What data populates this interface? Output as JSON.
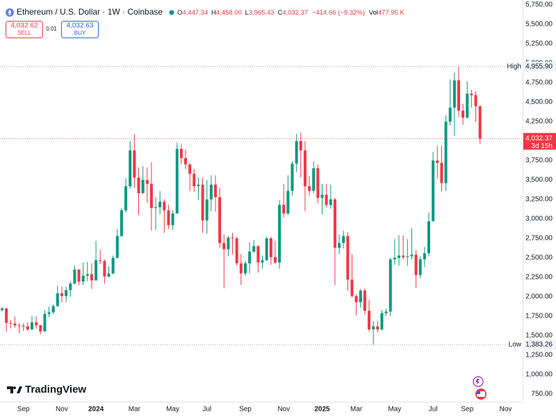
{
  "header": {
    "title": "Ethereum / U.S. Dollar · 1W · Coinbase",
    "ohlc": [
      {
        "key": "O",
        "value": "4,447.34"
      },
      {
        "key": "H",
        "value": "4,458.00"
      },
      {
        "key": "L",
        "value": "3,965.43"
      },
      {
        "key": "C",
        "value": "4,032.37"
      }
    ],
    "change": "−414.66 (−9.32%)",
    "volume": {
      "key": "Vol",
      "value": "477.95 K"
    }
  },
  "trade_panel": {
    "sell": {
      "price": "4,032.62",
      "label": "SELL"
    },
    "spread": "0.01",
    "buy": {
      "price": "4,032.63",
      "label": "BUY"
    }
  },
  "brand": "TradingView",
  "chart_data": {
    "type": "candlestick",
    "up_color": "#089981",
    "down_color": "#f23645",
    "grid": false,
    "categories": [
      null,
      null,
      null,
      null,
      null,
      "Sep",
      null,
      null,
      null,
      null,
      null,
      null,
      null,
      null,
      "Nov",
      null,
      null,
      null,
      null,
      null,
      null,
      null,
      "2024",
      null,
      null,
      null,
      null,
      null,
      null,
      null,
      null,
      "Mar",
      null,
      null,
      null,
      null,
      null,
      null,
      null,
      null,
      "May",
      null,
      null,
      null,
      null,
      null,
      null,
      null,
      "Jul",
      null,
      null,
      null,
      null,
      null,
      null,
      null,
      null,
      "Sep",
      null,
      null,
      null,
      null,
      null,
      null,
      null,
      null,
      "Nov",
      null,
      null,
      null,
      null,
      null,
      null,
      null,
      null,
      "2025",
      null,
      null,
      null,
      null,
      null,
      null,
      null,
      "Mar",
      null,
      null,
      null,
      null,
      null,
      null,
      null,
      null,
      "May",
      null,
      null,
      null,
      null,
      null,
      null,
      null,
      null,
      "Jul",
      null,
      null,
      null,
      null,
      null,
      null,
      null,
      "Sep",
      null,
      null,
      null,
      null,
      null,
      null,
      null,
      null,
      "Nov"
    ],
    "open": [
      1827,
      1850,
      1665,
      1656,
      1633,
      1630,
      1620,
      1580,
      1672,
      1635,
      1555,
      1780,
      1800,
      1880,
      2045,
      2010,
      2085,
      2170,
      2350,
      2195,
      2270,
      2290,
      2210,
      2470,
      2460,
      2260,
      2300,
      2500,
      2780,
      3110,
      3420,
      3880,
      3530,
      3330,
      3500,
      3450,
      3140,
      3150,
      3220,
      3110,
      2920,
      3070,
      3900,
      3780,
      3700,
      3580,
      3420,
      3440,
      2980,
      3250,
      3440,
      3280,
      2690,
      2610,
      2760,
      2750,
      2430,
      2300,
      2430,
      2580,
      2650,
      2440,
      2470,
      2750,
      2510,
      2440,
      3180,
      3070,
      3360,
      3710,
      4000,
      3880,
      3420,
      3360,
      3650,
      3270,
      3310,
      3180,
      3250,
      2630,
      2690,
      2780,
      2220,
      2010,
      1930,
      2080,
      1820,
      1580,
      1620,
      1580,
      1790,
      1810,
      2480,
      2500,
      2530,
      2510,
      2520,
      2540,
      2280,
      2480,
      2560,
      2970,
      3750,
      3720,
      3460,
      4250,
      4430,
      4780,
      4390,
      4300,
      4610,
      4590,
      4447.34,
      null,
      null,
      null,
      null,
      null,
      null
    ],
    "high": [
      1870,
      1860,
      1700,
      1745,
      1660,
      1660,
      1670,
      1750,
      1750,
      1640,
      1830,
      1870,
      1900,
      2140,
      2130,
      2130,
      2200,
      2400,
      2350,
      2440,
      2450,
      2430,
      2720,
      2600,
      2480,
      2390,
      2530,
      2870,
      3140,
      3520,
      4000,
      4090,
      3660,
      3680,
      3660,
      3730,
      3280,
      3360,
      3250,
      3180,
      3110,
      3980,
      3960,
      3890,
      3720,
      3640,
      3530,
      3530,
      3500,
      3560,
      3560,
      3400,
      2800,
      2780,
      2820,
      2770,
      2550,
      2460,
      2700,
      2730,
      2660,
      2530,
      2770,
      2770,
      2720,
      3240,
      3450,
      3560,
      3740,
      4090,
      4110,
      4000,
      3550,
      3740,
      3700,
      3450,
      3450,
      3440,
      3270,
      2800,
      2850,
      2830,
      2550,
      2030,
      2100,
      2110,
      1960,
      1690,
      1690,
      1830,
      1850,
      2500,
      2740,
      2790,
      2790,
      2740,
      2880,
      2600,
      2520,
      2640,
      3080,
      3860,
      3940,
      3940,
      4330,
      4790,
      4880,
      4955.9,
      4480,
      4770,
      4660,
      4640,
      4458,
      null,
      null,
      null,
      null,
      null,
      null
    ],
    "low": [
      1810,
      1550,
      1600,
      1605,
      1530,
      1560,
      1560,
      1575,
      1590,
      1520,
      1550,
      1740,
      1780,
      1870,
      1930,
      1930,
      2000,
      2160,
      2150,
      2150,
      2200,
      2100,
      2210,
      2420,
      2170,
      2250,
      2290,
      2490,
      2770,
      3080,
      3390,
      3400,
      3050,
      3320,
      3210,
      2850,
      2860,
      3060,
      2820,
      2870,
      2860,
      3070,
      3700,
      3640,
      3360,
      3350,
      3240,
      2820,
      2810,
      3100,
      3090,
      2630,
      2110,
      2520,
      2540,
      2400,
      2150,
      2270,
      2300,
      2560,
      2310,
      2360,
      2460,
      2410,
      2420,
      2360,
      3020,
      3050,
      3300,
      3600,
      3530,
      3100,
      3300,
      3330,
      3200,
      3060,
      3150,
      3130,
      2150,
      2550,
      2620,
      2080,
      1990,
      1760,
      1860,
      1770,
      1550,
      1383.26,
      1540,
      1570,
      1750,
      1750,
      2410,
      2400,
      2480,
      2400,
      2480,
      2120,
      2240,
      2380,
      2520,
      2970,
      3520,
      3350,
      3360,
      4200,
      4070,
      4310,
      4210,
      4290,
      4430,
      4250,
      3965.43,
      null,
      null,
      null,
      null,
      null,
      null
    ],
    "close": [
      1850,
      1665,
      1656,
      1633,
      1630,
      1620,
      1580,
      1672,
      1635,
      1555,
      1780,
      1800,
      1880,
      2045,
      2010,
      2085,
      2170,
      2350,
      2195,
      2270,
      2290,
      2210,
      2470,
      2460,
      2260,
      2300,
      2500,
      2780,
      3110,
      3420,
      3880,
      3530,
      3330,
      3500,
      3450,
      3140,
      3150,
      3220,
      3110,
      2920,
      3070,
      3900,
      3780,
      3700,
      3580,
      3420,
      3440,
      2980,
      3250,
      3440,
      3280,
      2690,
      2610,
      2760,
      2750,
      2430,
      2300,
      2430,
      2580,
      2650,
      2440,
      2470,
      2750,
      2510,
      2440,
      3180,
      3070,
      3360,
      3710,
      4000,
      3880,
      3420,
      3360,
      3650,
      3270,
      3310,
      3180,
      3250,
      2630,
      2690,
      2780,
      2220,
      2010,
      1930,
      2080,
      1820,
      1580,
      1620,
      1580,
      1790,
      1810,
      2480,
      2500,
      2530,
      2510,
      2520,
      2540,
      2280,
      2480,
      2560,
      2970,
      3750,
      3720,
      3460,
      4250,
      4430,
      4780,
      4390,
      4300,
      4610,
      4590,
      4447.03,
      4032.37,
      null,
      null,
      null,
      null,
      null,
      null
    ],
    "ylim": [
      652,
      5812
    ],
    "yticks": [
      {
        "value": 750,
        "label": "750.00"
      },
      {
        "value": 1000,
        "label": "1,000.00"
      },
      {
        "value": 1250,
        "label": "1,250.00"
      },
      {
        "value": 1500,
        "label": "1,500.00"
      },
      {
        "value": 1750,
        "label": "1,750.00"
      },
      {
        "value": 2000,
        "label": "2,000.00"
      },
      {
        "value": 2250,
        "label": "2,250.00"
      },
      {
        "value": 2500,
        "label": "2,500.00"
      },
      {
        "value": 2750,
        "label": "2,750.00"
      },
      {
        "value": 3000,
        "label": "3,000.00"
      },
      {
        "value": 3250,
        "label": "3,250.00"
      },
      {
        "value": 3500,
        "label": "3,500.00"
      },
      {
        "value": 3750,
        "label": "3,750.00"
      },
      {
        "value": 4000,
        "label": "4,000.00"
      },
      {
        "value": 4250,
        "label": "4,250.00"
      },
      {
        "value": 4500,
        "label": "4,500.00"
      },
      {
        "value": 4750,
        "label": "4,750.00"
      },
      {
        "value": 5000,
        "label": "5,000.00"
      },
      {
        "value": 5250,
        "label": "5,250.00"
      },
      {
        "value": 5500,
        "label": "5,500.00"
      },
      {
        "value": 5750,
        "label": "5,750.00"
      }
    ],
    "price_lines": [
      {
        "text": "High",
        "value": 4955.9,
        "label": "4,955.90",
        "color": "#787b86"
      },
      {
        "text": "3d 15h",
        "value": 4032.37,
        "label": "4,032.37",
        "color": "#f23645"
      },
      {
        "text": "Low",
        "value": 1383.26,
        "label": "1,383.26",
        "color": "#787b86"
      }
    ]
  }
}
